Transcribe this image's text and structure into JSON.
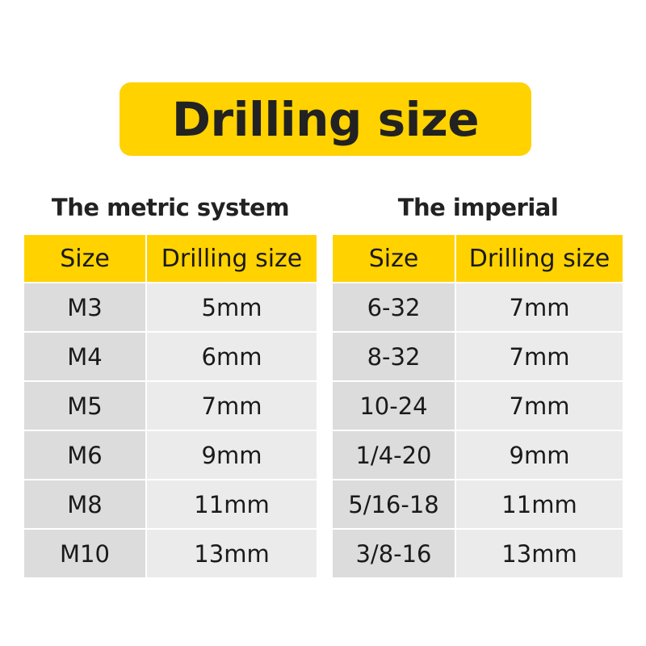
{
  "title": "Drilling size",
  "colors": {
    "accent": "#FFD200",
    "cell_dark": "#dcdcdc",
    "cell_light": "#ebebeb"
  },
  "metric": {
    "caption": "The metric system",
    "headers": [
      "Size",
      "Drilling size"
    ],
    "rows": [
      [
        "M3",
        "5mm"
      ],
      [
        "M4",
        "6mm"
      ],
      [
        "M5",
        "7mm"
      ],
      [
        "M6",
        "9mm"
      ],
      [
        "M8",
        "11mm"
      ],
      [
        "M10",
        "13mm"
      ]
    ]
  },
  "imperial": {
    "caption": "The imperial",
    "headers": [
      "Size",
      "Drilling size"
    ],
    "rows": [
      [
        "6-32",
        "7mm"
      ],
      [
        "8-32",
        "7mm"
      ],
      [
        "10-24",
        "7mm"
      ],
      [
        "1/4-20",
        "9mm"
      ],
      [
        "5/16-18",
        "11mm"
      ],
      [
        "3/8-16",
        "13mm"
      ]
    ]
  }
}
